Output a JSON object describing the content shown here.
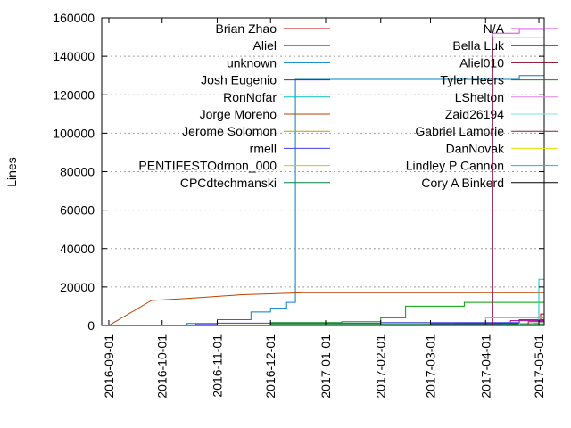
{
  "chart_data": {
    "type": "line",
    "ylabel": "Lines",
    "xlim": [
      "2016-08-28",
      "2017-05-04"
    ],
    "ylim": [
      0,
      160000
    ],
    "y_ticks": [
      0,
      20000,
      40000,
      60000,
      80000,
      100000,
      120000,
      140000,
      160000
    ],
    "x_ticks": [
      "2016-09-01",
      "2016-10-01",
      "2016-11-01",
      "2016-12-01",
      "2017-01-01",
      "2017-02-01",
      "2017-03-01",
      "2017-04-01",
      "2017-05-01"
    ],
    "grid": "y-only",
    "legend_position": "top, two columns",
    "series": [
      {
        "name": "Brian Zhao",
        "color": "#c00000",
        "x": [
          "2016-08-28",
          "2017-03-15",
          "2017-04-20",
          "2017-05-02",
          "2017-05-04"
        ],
        "y": [
          0,
          1000,
          3000,
          6000,
          7000
        ]
      },
      {
        "name": "Aliel",
        "color": "#00a000",
        "x": [
          "2016-08-28",
          "2016-12-01",
          "2017-01-10",
          "2017-02-01",
          "2017-02-15",
          "2017-03-20",
          "2017-05-04"
        ],
        "y": [
          0,
          1500,
          2000,
          4000,
          10000,
          12000,
          13000
        ]
      },
      {
        "name": "unknown",
        "color": "#0080c0",
        "x": [
          "2016-08-28",
          "2016-10-15",
          "2016-11-01",
          "2016-11-20",
          "2016-12-01",
          "2016-12-10",
          "2016-12-15",
          "2017-04-01",
          "2017-04-20",
          "2017-05-04"
        ],
        "y": [
          0,
          1000,
          3000,
          7000,
          9000,
          12000,
          128000,
          128000,
          130000,
          131000
        ]
      },
      {
        "name": "Josh Eugenio",
        "color": "#a000a0",
        "x": [
          "2016-08-28",
          "2017-03-01",
          "2017-04-15",
          "2017-05-04"
        ],
        "y": [
          0,
          500,
          2500,
          5000
        ]
      },
      {
        "name": "RonNofar",
        "color": "#00c0c0",
        "x": [
          "2016-08-28",
          "2017-04-10",
          "2017-05-01",
          "2017-05-04"
        ],
        "y": [
          0,
          500,
          2000,
          3000
        ]
      },
      {
        "name": "Jorge Moreno",
        "color": "#c04000",
        "x": [
          "2016-08-28",
          "2016-09-01",
          "2016-09-25",
          "2016-10-15",
          "2016-11-15",
          "2016-12-20",
          "2017-05-04"
        ],
        "y": [
          0,
          0,
          13000,
          14000,
          16000,
          17000,
          17000
        ]
      },
      {
        "name": "Jerome Solomon",
        "color": "#c0a000",
        "x": [
          "2016-08-28",
          "2016-11-01",
          "2017-05-04"
        ],
        "y": [
          0,
          300,
          500
        ]
      },
      {
        "name": "rmell",
        "color": "#4040e0",
        "x": [
          "2016-08-28",
          "2016-10-20",
          "2016-11-01",
          "2017-02-01",
          "2017-04-20",
          "2017-05-04"
        ],
        "y": [
          0,
          800,
          1200,
          1500,
          3000,
          12000
        ]
      },
      {
        "name": "PENTIFESTOdrnon_000",
        "color": "#e0c000",
        "x": [
          "2016-08-28",
          "2017-05-04"
        ],
        "y": [
          0,
          200
        ]
      },
      {
        "name": "CPCdtechmanski",
        "color": "#008040",
        "x": [
          "2016-08-28",
          "2016-12-01",
          "2017-05-04"
        ],
        "y": [
          0,
          800,
          1000
        ]
      },
      {
        "name": "N/A",
        "color": "#e040e0",
        "x": [
          "2016-08-28",
          "2017-04-05",
          "2017-04-05",
          "2017-04-20",
          "2017-05-04"
        ],
        "y": [
          0,
          0,
          152000,
          154000,
          154000
        ]
      },
      {
        "name": "Bella Luk",
        "color": "#004080",
        "x": [
          "2016-08-28",
          "2017-03-01",
          "2017-05-01",
          "2017-05-04"
        ],
        "y": [
          0,
          1000,
          2000,
          3000
        ]
      },
      {
        "name": "Aliel010",
        "color": "#800020",
        "x": [
          "2016-08-28",
          "2017-04-05",
          "2017-04-05",
          "2017-05-04"
        ],
        "y": [
          0,
          0,
          150000,
          150000
        ]
      },
      {
        "name": "Tyler Heers",
        "color": "#208020",
        "x": [
          "2016-08-28",
          "2017-04-15",
          "2017-05-04"
        ],
        "y": [
          0,
          500,
          1500
        ]
      },
      {
        "name": "LShelton",
        "color": "#e080e0",
        "x": [
          "2016-08-28",
          "2017-04-01",
          "2017-05-04"
        ],
        "y": [
          0,
          4000,
          7000
        ]
      },
      {
        "name": "Zaid26194",
        "color": "#80e0e0",
        "x": [
          "2016-08-28",
          "2017-04-20",
          "2017-05-04"
        ],
        "y": [
          0,
          1000,
          2000
        ]
      },
      {
        "name": "Gabriel Lamorie",
        "color": "#802040",
        "x": [
          "2016-08-28",
          "2017-04-25",
          "2017-05-04"
        ],
        "y": [
          0,
          2000,
          18000
        ]
      },
      {
        "name": "DanNovak",
        "color": "#e0e000",
        "x": [
          "2016-08-28",
          "2017-04-25",
          "2017-05-04"
        ],
        "y": [
          0,
          300,
          800
        ]
      },
      {
        "name": "Lindley P Cannon",
        "color": "#00c8c8",
        "x": [
          "2016-08-28",
          "2017-04-28",
          "2017-05-01",
          "2017-05-04"
        ],
        "y": [
          0,
          1000,
          24000,
          24000
        ]
      },
      {
        "name": "Cory A Binkerd",
        "color": "#000000",
        "x": [
          "2016-08-28",
          "2017-05-04"
        ],
        "y": [
          0,
          100
        ]
      }
    ]
  }
}
